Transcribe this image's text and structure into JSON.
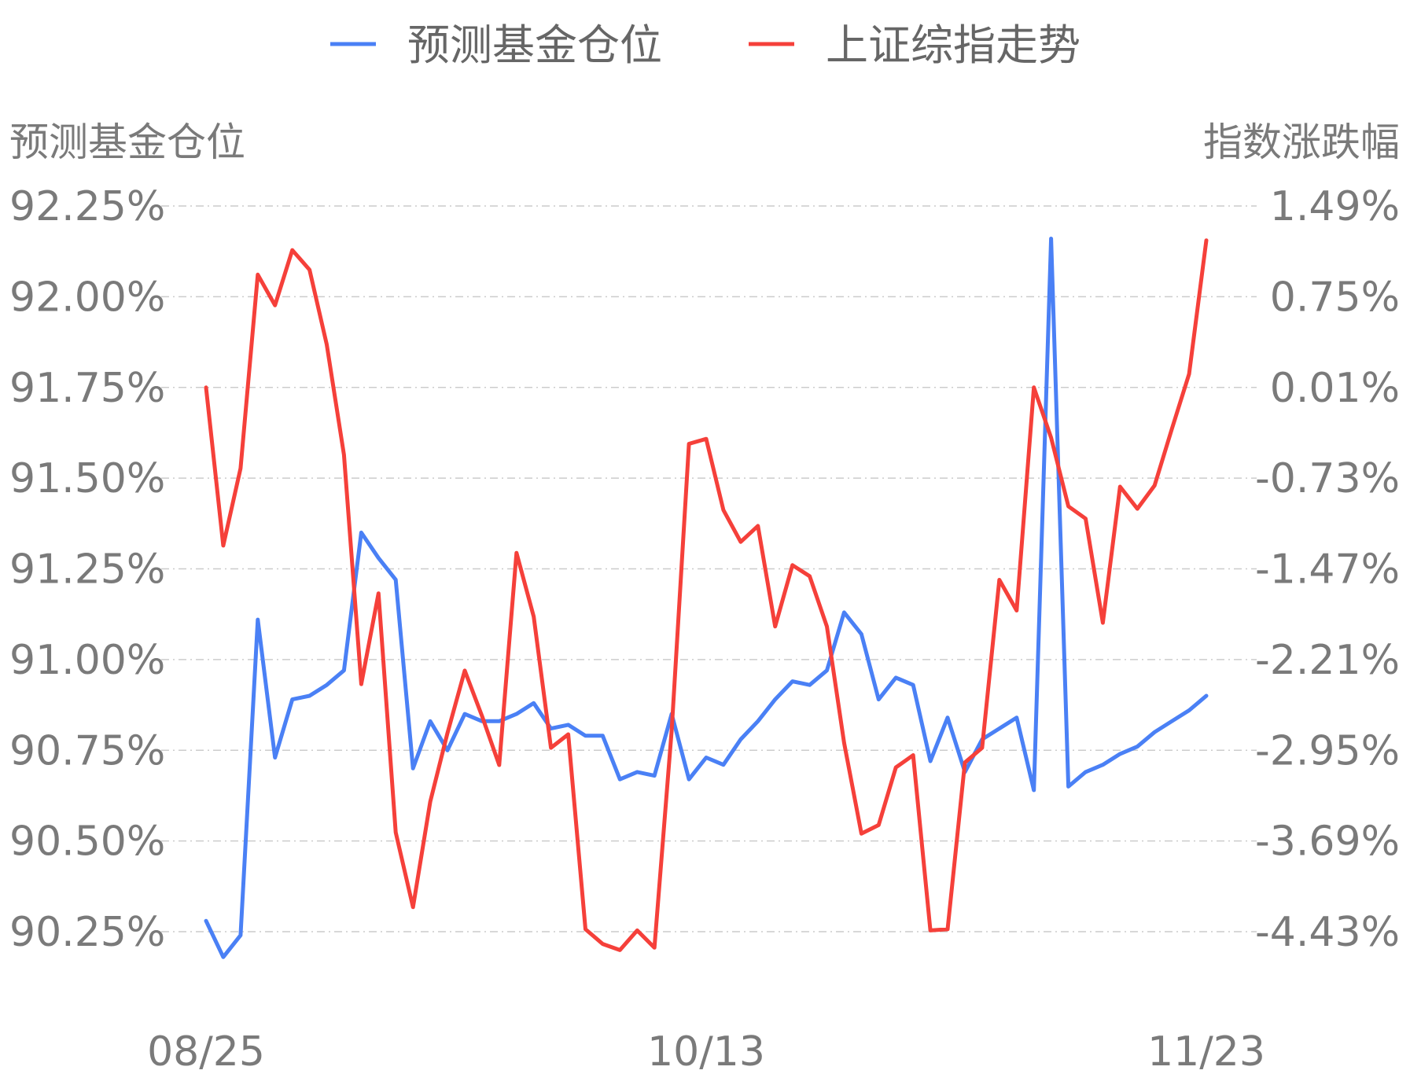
{
  "chart_data": {
    "type": "line",
    "legend": {
      "position": "top-center"
    },
    "grid": true,
    "x_ticks": [
      "08/25",
      "10/13",
      "11/23"
    ],
    "y_left": {
      "label": "预测基金仓位",
      "ticks": [
        "92.25%",
        "92.00%",
        "91.75%",
        "91.50%",
        "91.25%",
        "91.00%",
        "90.75%",
        "90.50%",
        "90.25%"
      ],
      "range": [
        90.25,
        92.25
      ]
    },
    "y_right": {
      "label": "指数涨跌幅",
      "ticks": [
        "1.49%",
        "0.75%",
        "0.01%",
        "-0.73%",
        "-1.47%",
        "-2.21%",
        "-2.95%",
        "-3.69%",
        "-4.43%"
      ],
      "range": [
        -4.43,
        1.49
      ]
    },
    "series": [
      {
        "name": "预测基金仓位",
        "axis": "left",
        "color": "#4a80f5",
        "values": [
          90.28,
          90.18,
          90.24,
          91.11,
          90.73,
          90.89,
          90.9,
          90.93,
          90.97,
          91.35,
          91.28,
          91.22,
          90.7,
          90.83,
          90.75,
          90.85,
          90.83,
          90.83,
          90.85,
          90.88,
          90.81,
          90.82,
          90.79,
          90.79,
          90.67,
          90.69,
          90.68,
          90.85,
          90.67,
          90.73,
          90.71,
          90.78,
          90.83,
          90.89,
          90.94,
          90.93,
          90.97,
          91.13,
          91.07,
          90.89,
          90.95,
          90.93,
          90.72,
          90.84,
          90.69,
          90.78,
          90.81,
          90.84,
          90.64,
          92.16,
          90.65,
          90.69,
          90.71,
          90.74,
          90.76,
          90.8,
          90.83,
          90.86,
          90.9
        ]
      },
      {
        "name": "上证综指走势",
        "axis": "right",
        "color": "#f5403a",
        "values": [
          0.01,
          -1.28,
          -0.65,
          0.93,
          0.68,
          1.13,
          0.97,
          0.36,
          -0.54,
          -2.41,
          -1.67,
          -3.62,
          -4.23,
          -3.37,
          -2.81,
          -2.3,
          -2.67,
          -3.07,
          -1.34,
          -1.86,
          -2.93,
          -2.82,
          -4.41,
          -4.53,
          -4.58,
          -4.42,
          -4.56,
          -2.79,
          -0.45,
          -0.41,
          -0.99,
          -1.25,
          -1.12,
          -1.94,
          -1.44,
          -1.53,
          -1.94,
          -2.89,
          -3.63,
          -3.56,
          -3.09,
          -2.99,
          -4.42,
          -4.41,
          -3.05,
          -2.93,
          -1.56,
          -1.81,
          0.01,
          -0.4,
          -0.96,
          -1.06,
          -1.91,
          -0.8,
          -0.98,
          -0.79,
          -0.33,
          0.12,
          1.21
        ]
      }
    ]
  }
}
